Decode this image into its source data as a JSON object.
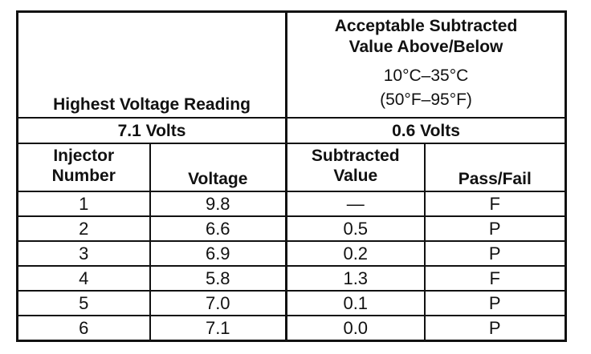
{
  "header": {
    "highest_voltage_label": "Highest Voltage Reading",
    "acceptable_line1": "Acceptable Subtracted",
    "acceptable_line2": "Value Above/Below",
    "temp_celsius": "10°C–35°C",
    "temp_fahrenheit": "(50°F–95°F)"
  },
  "summary": {
    "highest_voltage": "7.1 Volts",
    "acceptable_value": "0.6 Volts"
  },
  "columns": {
    "injector_line1": "Injector",
    "injector_line2": "Number",
    "voltage": "Voltage",
    "subtracted_line1": "Subtracted",
    "subtracted_line2": "Value",
    "pass_fail": "Pass/Fail"
  },
  "rows": [
    {
      "injector": "1",
      "voltage": "9.8",
      "subtracted": "—",
      "result": "F"
    },
    {
      "injector": "2",
      "voltage": "6.6",
      "subtracted": "0.5",
      "result": "P"
    },
    {
      "injector": "3",
      "voltage": "6.9",
      "subtracted": "0.2",
      "result": "P"
    },
    {
      "injector": "4",
      "voltage": "5.8",
      "subtracted": "1.3",
      "result": "F"
    },
    {
      "injector": "5",
      "voltage": "7.0",
      "subtracted": "0.1",
      "result": "P"
    },
    {
      "injector": "6",
      "voltage": "7.1",
      "subtracted": "0.0",
      "result": "P"
    }
  ]
}
